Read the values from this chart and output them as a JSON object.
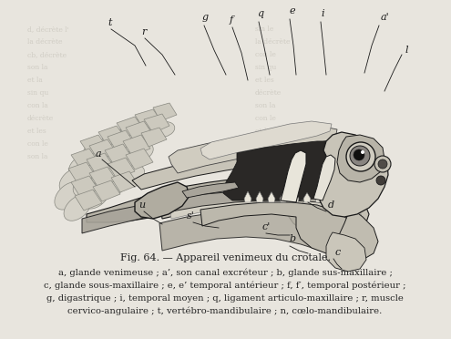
{
  "background_color": "#e8e5de",
  "page_text_color": "#b8b4aa",
  "fig_caption": "Fig. 64. — Appareil venimeux du crotale.",
  "description_lines": [
    "a, glande venimeuse ; a’, son canal excréteur ; b, glande sus-maxillaire ;",
    "c, glande sous-maxillaire ; e, e’ temporal antérieur ; f, f′, temporal postérieur ;",
    "g, digastrique ; i, temporal moyen ; q, ligament articulo-maxillaire ; r, muscle",
    "cervico-angulaire ; t, vertébro-mandibulaire ; n, cœlo-mandibulaire."
  ],
  "caption_fontsize": 8.0,
  "desc_fontsize": 7.2,
  "dark": "#1a1a1a",
  "mid_dark": "#444444",
  "mid": "#777777",
  "light": "#aaaaaa",
  "very_light": "#cccccc"
}
